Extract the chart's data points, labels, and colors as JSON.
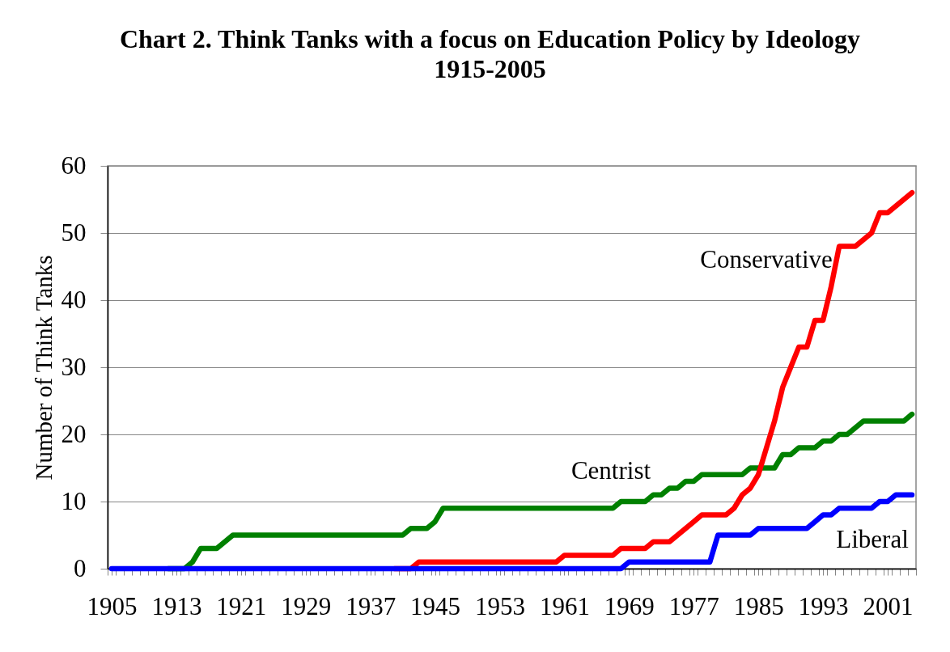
{
  "chart_data": {
    "type": "line",
    "title": "Chart 2. Think Tanks with a focus on Education Policy by Ideology 1915-2005",
    "ylabel": "Number of Think Tanks",
    "x": [
      1905,
      1906,
      1907,
      1908,
      1909,
      1910,
      1911,
      1912,
      1913,
      1914,
      1915,
      1916,
      1917,
      1918,
      1919,
      1920,
      1921,
      1922,
      1923,
      1924,
      1925,
      1926,
      1927,
      1928,
      1929,
      1930,
      1931,
      1932,
      1933,
      1934,
      1935,
      1936,
      1937,
      1938,
      1939,
      1940,
      1941,
      1942,
      1943,
      1944,
      1945,
      1946,
      1947,
      1948,
      1949,
      1950,
      1951,
      1952,
      1953,
      1954,
      1955,
      1956,
      1957,
      1958,
      1959,
      1960,
      1961,
      1962,
      1963,
      1964,
      1965,
      1966,
      1967,
      1968,
      1969,
      1970,
      1971,
      1972,
      1973,
      1974,
      1975,
      1976,
      1977,
      1978,
      1979,
      1980,
      1981,
      1982,
      1983,
      1984,
      1985,
      1986,
      1987,
      1988,
      1989,
      1990,
      1991,
      1992,
      1993,
      1994,
      1995,
      1996,
      1997,
      1998,
      1999,
      2000,
      2001,
      2002,
      2003,
      2004
    ],
    "series": [
      {
        "name": "Centrist",
        "color": "#008000",
        "values": [
          null,
          null,
          null,
          null,
          null,
          null,
          null,
          0,
          0,
          0,
          1,
          3,
          3,
          3,
          4,
          5,
          5,
          5,
          5,
          5,
          5,
          5,
          5,
          5,
          5,
          5,
          5,
          5,
          5,
          5,
          5,
          5,
          5,
          5,
          5,
          5,
          5,
          6,
          6,
          6,
          7,
          9,
          9,
          9,
          9,
          9,
          9,
          9,
          9,
          9,
          9,
          9,
          9,
          9,
          9,
          9,
          9,
          9,
          9,
          9,
          9,
          9,
          9,
          10,
          10,
          10,
          10,
          11,
          11,
          12,
          12,
          13,
          13,
          14,
          14,
          14,
          14,
          14,
          14,
          15,
          15,
          15,
          15,
          17,
          17,
          18,
          18,
          18,
          19,
          19,
          20,
          20,
          21,
          22,
          22,
          22,
          22,
          22,
          22,
          23
        ]
      },
      {
        "name": "Conservative",
        "color": "#ff0000",
        "values": [
          null,
          null,
          null,
          null,
          null,
          null,
          null,
          null,
          null,
          null,
          null,
          null,
          null,
          null,
          null,
          null,
          null,
          null,
          null,
          null,
          null,
          null,
          null,
          null,
          null,
          null,
          null,
          null,
          null,
          null,
          null,
          null,
          null,
          null,
          null,
          0,
          0,
          0,
          1,
          1,
          1,
          1,
          1,
          1,
          1,
          1,
          1,
          1,
          1,
          1,
          1,
          1,
          1,
          1,
          1,
          1,
          2,
          2,
          2,
          2,
          2,
          2,
          2,
          3,
          3,
          3,
          3,
          4,
          4,
          4,
          5,
          6,
          7,
          8,
          8,
          8,
          8,
          9,
          11,
          12,
          14,
          18,
          22,
          27,
          30,
          33,
          33,
          37,
          37,
          42,
          48,
          48,
          48,
          49,
          50,
          53,
          53,
          54,
          55,
          56
        ]
      },
      {
        "name": "Liberal",
        "color": "#0000ff",
        "values": [
          0,
          0,
          0,
          0,
          0,
          0,
          0,
          0,
          0,
          0,
          0,
          0,
          0,
          0,
          0,
          0,
          0,
          0,
          0,
          0,
          0,
          0,
          0,
          0,
          0,
          0,
          0,
          0,
          0,
          0,
          0,
          0,
          0,
          0,
          0,
          0,
          0,
          0,
          0,
          0,
          0,
          0,
          0,
          0,
          0,
          0,
          0,
          0,
          0,
          0,
          0,
          0,
          0,
          0,
          0,
          0,
          0,
          0,
          0,
          0,
          0,
          0,
          0,
          0,
          1,
          1,
          1,
          1,
          1,
          1,
          1,
          1,
          1,
          1,
          1,
          5,
          5,
          5,
          5,
          5,
          6,
          6,
          6,
          6,
          6,
          6,
          6,
          7,
          8,
          8,
          9,
          9,
          9,
          9,
          9,
          10,
          10,
          11,
          11,
          11
        ]
      }
    ],
    "xlim": [
      1904.5,
      2004.5
    ],
    "xticks": [
      {
        "value": 1904.5,
        "label": null
      },
      1905,
      {
        "value": 1905.5,
        "label": null
      },
      {
        "value": 1906.5,
        "label": null
      },
      {
        "value": 1907.5,
        "label": null
      },
      {
        "value": 1908.5,
        "label": null
      },
      {
        "value": 1909.5,
        "label": null
      },
      {
        "value": 1910.5,
        "label": null
      },
      {
        "value": 1911.5,
        "label": null
      },
      {
        "value": 1912.5,
        "label": null
      },
      1913,
      {
        "value": 1913.5,
        "label": null
      },
      {
        "value": 1914.5,
        "label": null
      },
      {
        "value": 1915.5,
        "label": null
      },
      {
        "value": 1916.5,
        "label": null
      },
      {
        "value": 1917.5,
        "label": null
      },
      {
        "value": 1918.5,
        "label": null
      },
      {
        "value": 1919.5,
        "label": null
      },
      {
        "value": 1920.5,
        "label": null
      },
      1921,
      {
        "value": 1921.5,
        "label": null
      },
      {
        "value": 1922.5,
        "label": null
      },
      {
        "value": 1923.5,
        "label": null
      },
      {
        "value": 1924.5,
        "label": null
      },
      {
        "value": 1925.5,
        "label": null
      },
      {
        "value": 1926.5,
        "label": null
      },
      {
        "value": 1927.5,
        "label": null
      },
      {
        "value": 1928.5,
        "label": null
      },
      1929,
      {
        "value": 1929.5,
        "label": null
      },
      {
        "value": 1930.5,
        "label": null
      },
      {
        "value": 1931.5,
        "label": null
      },
      {
        "value": 1932.5,
        "label": null
      },
      {
        "value": 1933.5,
        "label": null
      },
      {
        "value": 1934.5,
        "label": null
      },
      {
        "value": 1935.5,
        "label": null
      },
      {
        "value": 1936.5,
        "label": null
      },
      1937,
      {
        "value": 1937.5,
        "label": null
      },
      {
        "value": 1938.5,
        "label": null
      },
      {
        "value": 1939.5,
        "label": null
      },
      {
        "value": 1940.5,
        "label": null
      },
      {
        "value": 1941.5,
        "label": null
      },
      {
        "value": 1942.5,
        "label": null
      },
      {
        "value": 1943.5,
        "label": null
      },
      {
        "value": 1944.5,
        "label": null
      },
      1945,
      {
        "value": 1945.5,
        "label": null
      },
      {
        "value": 1946.5,
        "label": null
      },
      {
        "value": 1947.5,
        "label": null
      },
      {
        "value": 1948.5,
        "label": null
      },
      {
        "value": 1949.5,
        "label": null
      },
      {
        "value": 1950.5,
        "label": null
      },
      {
        "value": 1951.5,
        "label": null
      },
      {
        "value": 1952.5,
        "label": null
      },
      1953,
      {
        "value": 1953.5,
        "label": null
      },
      {
        "value": 1954.5,
        "label": null
      },
      {
        "value": 1955.5,
        "label": null
      },
      {
        "value": 1956.5,
        "label": null
      },
      {
        "value": 1957.5,
        "label": null
      },
      {
        "value": 1958.5,
        "label": null
      },
      {
        "value": 1959.5,
        "label": null
      },
      {
        "value": 1960.5,
        "label": null
      },
      1961,
      {
        "value": 1961.5,
        "label": null
      },
      {
        "value": 1962.5,
        "label": null
      },
      {
        "value": 1963.5,
        "label": null
      },
      {
        "value": 1964.5,
        "label": null
      },
      {
        "value": 1965.5,
        "label": null
      },
      {
        "value": 1966.5,
        "label": null
      },
      {
        "value": 1967.5,
        "label": null
      },
      {
        "value": 1968.5,
        "label": null
      },
      1969,
      {
        "value": 1969.5,
        "label": null
      },
      {
        "value": 1970.5,
        "label": null
      },
      {
        "value": 1971.5,
        "label": null
      },
      {
        "value": 1972.5,
        "label": null
      },
      {
        "value": 1973.5,
        "label": null
      },
      {
        "value": 1974.5,
        "label": null
      },
      {
        "value": 1975.5,
        "label": null
      },
      {
        "value": 1976.5,
        "label": null
      },
      1977,
      {
        "value": 1977.5,
        "label": null
      },
      {
        "value": 1978.5,
        "label": null
      },
      {
        "value": 1979.5,
        "label": null
      },
      {
        "value": 1980.5,
        "label": null
      },
      {
        "value": 1981.5,
        "label": null
      },
      {
        "value": 1982.5,
        "label": null
      },
      {
        "value": 1983.5,
        "label": null
      },
      {
        "value": 1984.5,
        "label": null
      },
      1985,
      {
        "value": 1985.5,
        "label": null
      },
      {
        "value": 1986.5,
        "label": null
      },
      {
        "value": 1987.5,
        "label": null
      },
      {
        "value": 1988.5,
        "label": null
      },
      {
        "value": 1989.5,
        "label": null
      },
      {
        "value": 1990.5,
        "label": null
      },
      {
        "value": 1991.5,
        "label": null
      },
      {
        "value": 1992.5,
        "label": null
      },
      1993,
      {
        "value": 1993.5,
        "label": null
      },
      {
        "value": 1994.5,
        "label": null
      },
      {
        "value": 1995.5,
        "label": null
      },
      {
        "value": 1996.5,
        "label": null
      },
      {
        "value": 1997.5,
        "label": null
      },
      {
        "value": 1998.5,
        "label": null
      },
      {
        "value": 1999.5,
        "label": null
      },
      {
        "value": 2000.5,
        "label": null
      },
      2001,
      {
        "value": 2001.5,
        "label": null
      },
      {
        "value": 2002.5,
        "label": null
      },
      {
        "value": 2003.5,
        "label": null
      },
      {
        "value": 2004.5,
        "label": null
      }
    ],
    "ylim": [
      0,
      60
    ],
    "yticks": [
      0,
      10,
      20,
      30,
      40,
      50,
      60
    ],
    "grid": "y"
  }
}
